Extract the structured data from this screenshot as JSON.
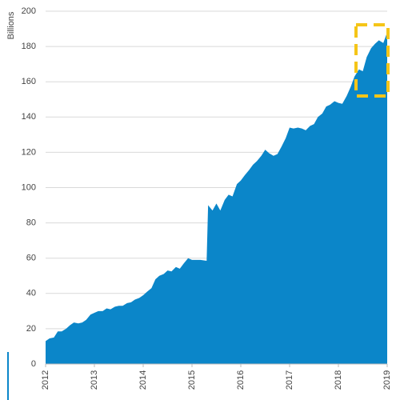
{
  "chart_data": {
    "type": "area",
    "y_label": "Billions",
    "color": "#0b86c9",
    "grid": true,
    "xlim": [
      2012,
      2019
    ],
    "xticks": [
      2012,
      2013,
      2014,
      2015,
      2016,
      2017,
      2018,
      2019
    ],
    "ylim": [
      0,
      200
    ],
    "yticks": [
      0,
      20,
      40,
      60,
      80,
      100,
      120,
      140,
      160,
      180,
      200
    ],
    "x": [
      2012.0,
      2012.08,
      2012.17,
      2012.25,
      2012.33,
      2012.42,
      2012.5,
      2012.58,
      2012.67,
      2012.75,
      2012.83,
      2012.92,
      2013.0,
      2013.08,
      2013.17,
      2013.25,
      2013.33,
      2013.42,
      2013.5,
      2013.58,
      2013.67,
      2013.75,
      2013.83,
      2013.92,
      2014.0,
      2014.08,
      2014.17,
      2014.25,
      2014.33,
      2014.42,
      2014.5,
      2014.58,
      2014.67,
      2014.75,
      2014.83,
      2014.92,
      2015.0,
      2015.17,
      2015.3,
      2015.33,
      2015.42,
      2015.5,
      2015.58,
      2015.67,
      2015.75,
      2015.83,
      2015.92,
      2016.0,
      2016.08,
      2016.17,
      2016.25,
      2016.33,
      2016.42,
      2016.5,
      2016.58,
      2016.67,
      2016.75,
      2016.83,
      2016.92,
      2017.0,
      2017.08,
      2017.17,
      2017.25,
      2017.33,
      2017.42,
      2017.5,
      2017.58,
      2017.67,
      2017.75,
      2017.83,
      2017.92,
      2018.0,
      2018.08,
      2018.17,
      2018.25,
      2018.33,
      2018.42,
      2018.5,
      2018.58,
      2018.67,
      2018.75,
      2018.83,
      2018.92,
      2019.0
    ],
    "values": [
      13,
      14.5,
      15,
      18.5,
      18.5,
      20,
      22,
      23.5,
      23,
      23.5,
      25,
      28,
      29,
      30,
      30,
      31.5,
      31,
      32.5,
      33,
      33,
      34.5,
      35,
      36.5,
      37.5,
      39,
      41,
      43,
      48,
      50,
      51,
      53,
      52.5,
      55,
      54,
      57,
      60,
      59,
      59,
      58.5,
      90,
      87,
      91,
      87,
      93,
      96,
      95,
      102,
      104,
      107,
      110,
      113,
      115,
      118,
      121.5,
      119.5,
      118,
      119,
      123,
      128,
      134,
      133.5,
      134,
      133.5,
      132.5,
      135,
      136,
      140,
      142,
      146,
      147,
      149,
      148,
      147.5,
      152,
      157,
      163,
      167,
      166,
      174,
      179,
      181.5,
      183.5,
      182,
      188
    ]
  }
}
